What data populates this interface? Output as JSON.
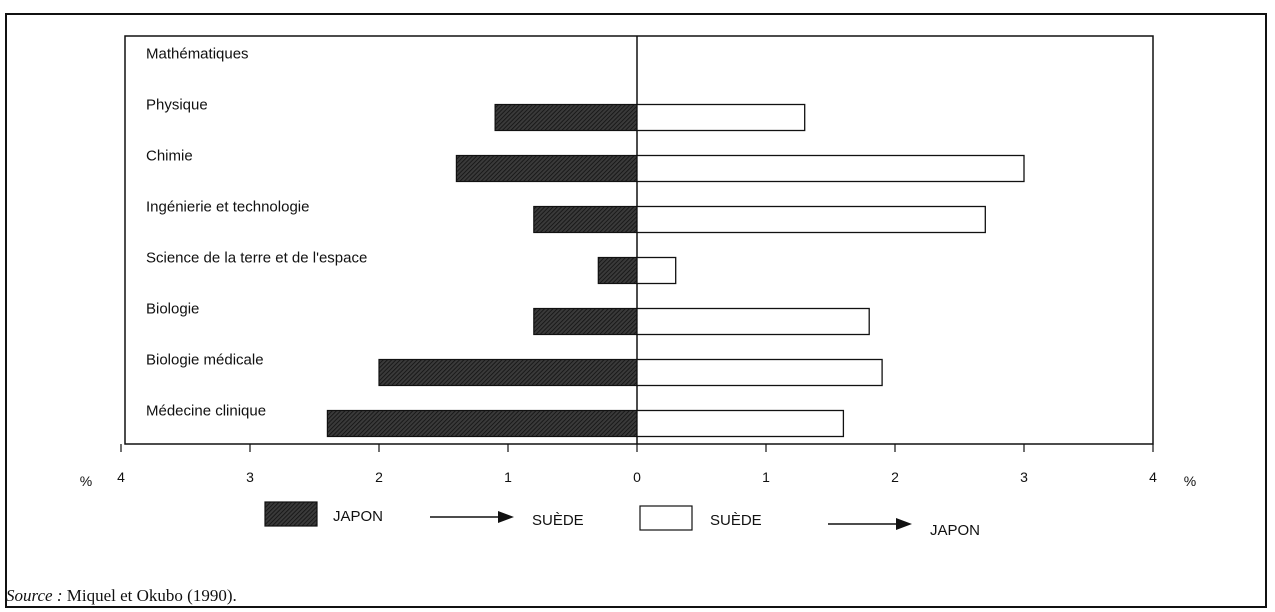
{
  "chart_data": {
    "type": "bar",
    "orientation": "horizontal",
    "categories": [
      "Mathématiques",
      "Physique",
      "Chimie",
      "Ingénierie et technologie",
      "Science de la terre et de l'espace",
      "Biologie",
      "Biologie médicale",
      "Médecine clinique"
    ],
    "series": [
      {
        "name": "JAPON → SUÈDE",
        "values": [
          0,
          1.1,
          1.4,
          0.8,
          0.3,
          0.8,
          2.0,
          2.4
        ]
      },
      {
        "name": "SUÈDE → JAPON",
        "values": [
          0,
          1.3,
          3.0,
          2.7,
          0.3,
          1.8,
          1.9,
          1.6
        ]
      }
    ],
    "x_ticks": [
      "4",
      "3",
      "2",
      "1",
      "0",
      "1",
      "2",
      "3",
      "4"
    ],
    "xlim": [
      -4,
      4
    ],
    "unit_left": "%",
    "unit_right": "%",
    "legend": [
      {
        "from": "JAPON",
        "to": "SUÈDE",
        "fill": "hatched"
      },
      {
        "from": "SUÈDE",
        "to": "JAPON",
        "fill": "white"
      }
    ],
    "colors": {
      "japon_bar": "#2a2a2a",
      "suede_bar": "#ffffff",
      "ink": "#111111"
    }
  },
  "source": {
    "label": "Source :",
    "text": " Miquel et Okubo (1990)."
  }
}
